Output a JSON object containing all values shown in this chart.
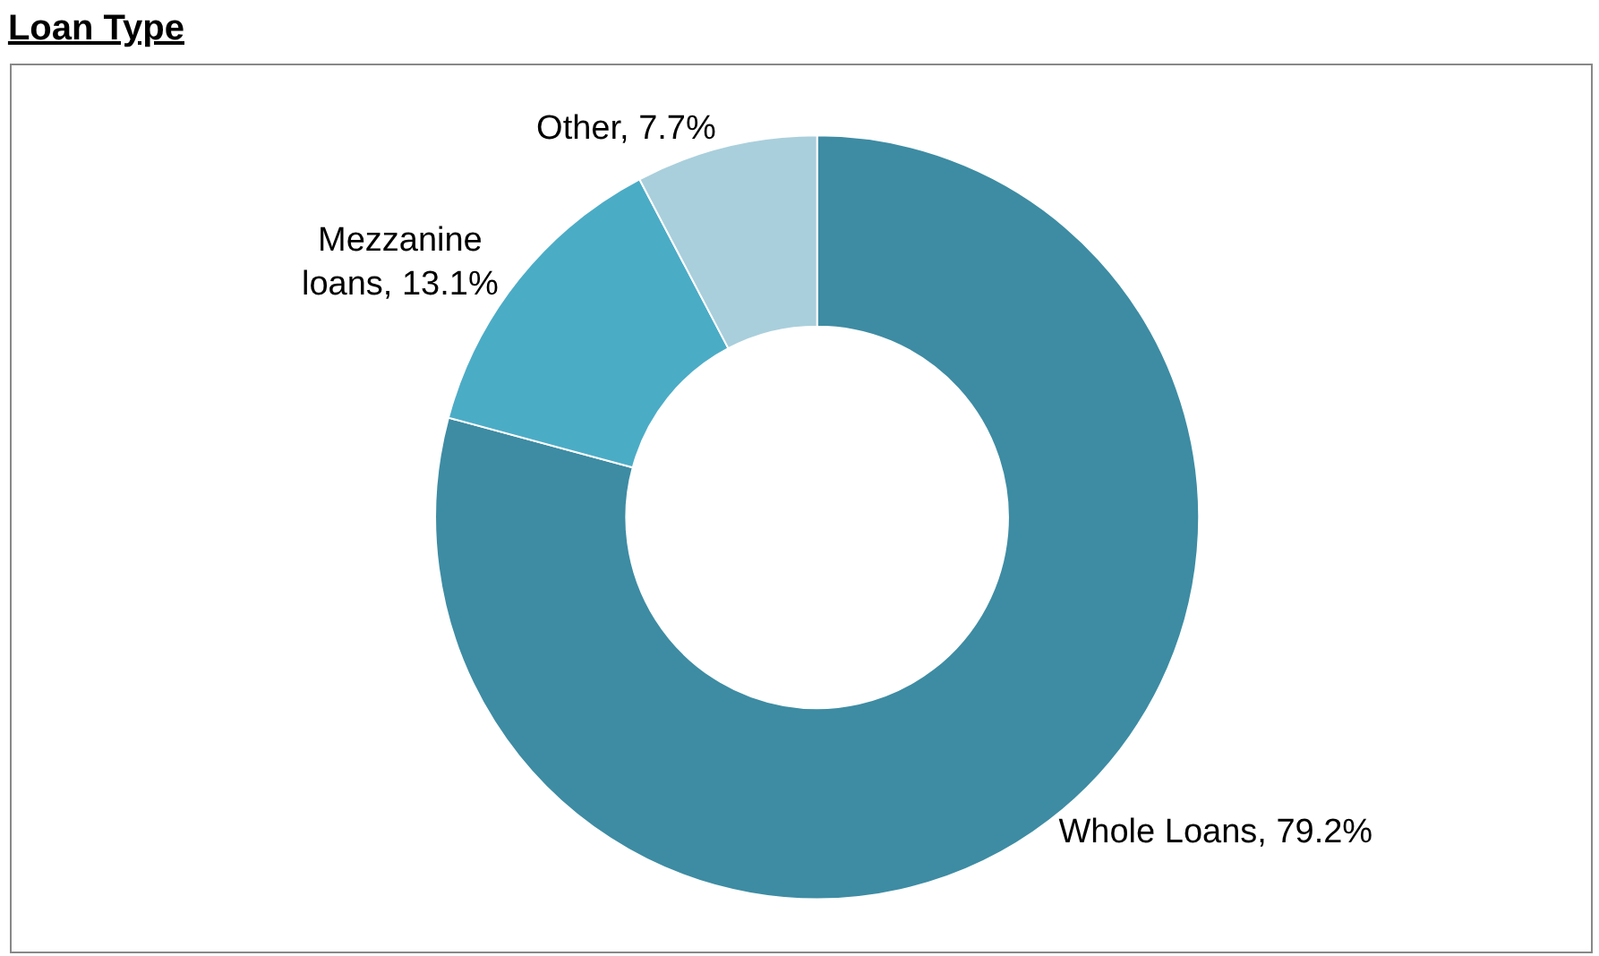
{
  "chart_data": {
    "type": "donut",
    "title": "Loan Type",
    "categories": [
      "Whole Loans",
      "Mezzanine loans",
      "Other"
    ],
    "values": [
      79.2,
      13.1,
      7.7
    ],
    "value_labels": [
      "79.2%",
      "13.1%",
      "7.7%"
    ],
    "colors": [
      "#3d8ca3",
      "#4bacc6",
      "#a9cfdc"
    ],
    "legend": false
  }
}
